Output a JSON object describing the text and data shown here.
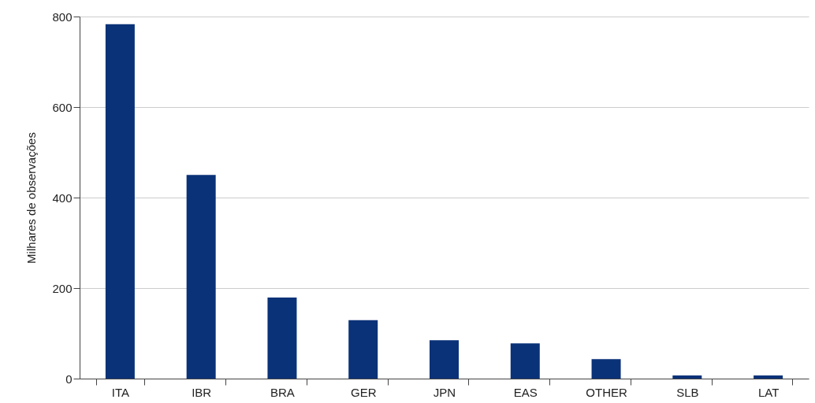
{
  "chart_data": {
    "type": "bar",
    "ylabel": "Milhares de observações",
    "categories": [
      "ITA",
      "IBR",
      "BRA",
      "GER",
      "JPN",
      "EAS",
      "OTHER",
      "SLB",
      "LAT"
    ],
    "values": [
      783,
      450,
      179,
      129,
      85,
      78,
      43,
      7,
      7
    ],
    "color": "#0a3278",
    "ylim": [
      0,
      800
    ],
    "yticks": [
      0,
      200,
      400,
      600,
      800
    ],
    "grid": "y"
  }
}
